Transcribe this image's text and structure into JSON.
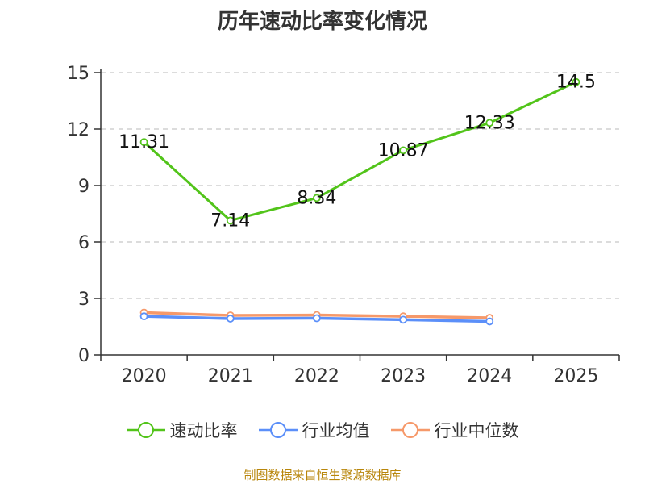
{
  "chart_data": {
    "type": "line",
    "title": "历年速动比率变化情况",
    "categories": [
      "2020",
      "2021",
      "2022",
      "2023",
      "2024",
      "2025"
    ],
    "ylim": [
      0,
      15
    ],
    "yticks": [
      "0",
      "3",
      "6",
      "9",
      "12",
      "15"
    ],
    "grid": true,
    "legend_position": "bottom",
    "series": [
      {
        "name": "速动比率",
        "color": "#52c41a",
        "values": [
          11.31,
          7.14,
          8.34,
          10.87,
          12.33,
          14.5
        ],
        "labels": [
          "11.31",
          "7.14",
          "8.34",
          "10.87",
          "12.33",
          "14.5"
        ]
      },
      {
        "name": "行业均值",
        "color": "#5b8ff9",
        "values": [
          2.05,
          1.93,
          1.95,
          1.87,
          1.78,
          null
        ]
      },
      {
        "name": "行业中位数",
        "color": "#f6996a",
        "values": [
          2.25,
          2.1,
          2.12,
          2.05,
          1.97,
          null
        ]
      }
    ]
  },
  "source": "制图数据来自恒生聚源数据库"
}
